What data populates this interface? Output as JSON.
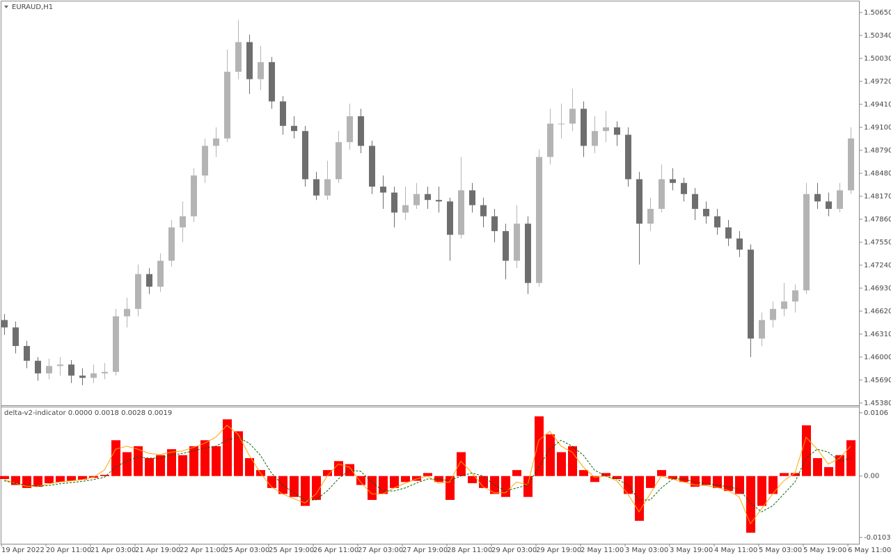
{
  "chart_data": [
    {
      "type": "candlestick",
      "title": "EURAUD,H1",
      "categories": [
        "19 Apr 2022",
        null,
        null,
        null,
        "20 Apr 11:00",
        null,
        null,
        null,
        "21 Apr 03:00",
        null,
        null,
        null,
        "21 Apr 19:00",
        null,
        null,
        null,
        "22 Apr 11:00",
        null,
        null,
        null,
        "25 Apr 03:00",
        null,
        null,
        null,
        "25 Apr 19:00",
        null,
        null,
        null,
        "26 Apr 11:00",
        null,
        null,
        null,
        "27 Apr 03:00",
        null,
        null,
        null,
        "27 Apr 19:00",
        null,
        null,
        null,
        "28 Apr 11:00",
        null,
        null,
        null,
        "29 Apr 03:00",
        null,
        null,
        null,
        "29 Apr 19:00",
        null,
        null,
        null,
        "2 May 11:00",
        null,
        null,
        null,
        "3 May 03:00",
        null,
        null,
        null,
        "3 May 19:00",
        null,
        null,
        null,
        "4 May 11:00",
        null,
        null,
        null,
        "5 May 03:00",
        null,
        null,
        null,
        "5 May 19:00",
        null,
        null,
        null,
        "6 May 11:00"
      ],
      "open": [
        1.465,
        1.464,
        1.4615,
        1.4595,
        1.4578,
        1.4588,
        1.459,
        1.4575,
        1.4572,
        1.4578,
        1.458,
        1.4655,
        1.4665,
        1.4712,
        1.4695,
        1.473,
        1.4775,
        1.479,
        1.4845,
        1.4885,
        1.4895,
        1.4985,
        1.5025,
        1.4975,
        1.4998,
        1.4945,
        1.4912,
        1.4905,
        1.484,
        1.4818,
        1.484,
        1.489,
        1.4925,
        1.4885,
        1.483,
        1.4822,
        1.4795,
        1.4805,
        1.482,
        1.4812,
        1.481,
        1.4765,
        1.4825,
        1.4805,
        1.479,
        1.477,
        1.473,
        1.478,
        1.47,
        1.487,
        1.4915,
        1.4915,
        1.4935,
        1.4885,
        1.4905,
        1.491,
        1.49,
        1.484,
        1.478,
        1.48,
        1.484,
        1.4835,
        1.482,
        1.48,
        1.479,
        1.4775,
        1.476,
        1.4745,
        1.4625,
        1.465,
        1.4665,
        1.4675,
        1.469,
        1.482,
        1.481,
        1.48,
        1.4825
      ],
      "high": [
        1.4658,
        1.4648,
        1.4622,
        1.46,
        1.4598,
        1.46,
        1.4596,
        1.4585,
        1.459,
        1.4592,
        1.4665,
        1.468,
        1.4725,
        1.472,
        1.474,
        1.4785,
        1.481,
        1.4855,
        1.4895,
        1.491,
        1.5015,
        1.5055,
        1.5035,
        1.502,
        1.5005,
        1.4952,
        1.4925,
        1.4912,
        1.485,
        1.4865,
        1.4905,
        1.4942,
        1.4935,
        1.4892,
        1.4845,
        1.483,
        1.483,
        1.4835,
        1.483,
        1.483,
        1.4815,
        1.487,
        1.4835,
        1.4815,
        1.48,
        1.478,
        1.4805,
        1.479,
        1.488,
        1.4935,
        1.4942,
        1.4962,
        1.4945,
        1.4925,
        1.4932,
        1.4918,
        1.491,
        1.485,
        1.4815,
        1.486,
        1.4855,
        1.4842,
        1.4828,
        1.481,
        1.48,
        1.4785,
        1.477,
        1.4752,
        1.466,
        1.4675,
        1.47,
        1.4698,
        1.4835,
        1.4835,
        1.4822,
        1.4835,
        1.491
      ],
      "low": [
        1.463,
        1.4605,
        1.4585,
        1.4568,
        1.457,
        1.4575,
        1.4565,
        1.4562,
        1.4565,
        1.457,
        1.4575,
        1.464,
        1.4655,
        1.4685,
        1.4688,
        1.4722,
        1.4755,
        1.4782,
        1.4835,
        1.487,
        1.489,
        1.4975,
        1.4955,
        1.496,
        1.4935,
        1.49,
        1.4895,
        1.483,
        1.4812,
        1.4812,
        1.4835,
        1.488,
        1.4875,
        1.482,
        1.48,
        1.4775,
        1.4785,
        1.48,
        1.48,
        1.4795,
        1.473,
        1.476,
        1.4795,
        1.4775,
        1.4755,
        1.4705,
        1.472,
        1.4685,
        1.4695,
        1.486,
        1.4895,
        1.4905,
        1.487,
        1.4875,
        1.489,
        1.4885,
        1.483,
        1.4725,
        1.477,
        1.4795,
        1.4825,
        1.481,
        1.4785,
        1.478,
        1.4765,
        1.475,
        1.4735,
        1.46,
        1.4615,
        1.464,
        1.4655,
        1.466,
        1.4685,
        1.48,
        1.479,
        1.4795,
        1.482
      ],
      "close": [
        1.464,
        1.4615,
        1.4595,
        1.4578,
        1.4588,
        1.459,
        1.4575,
        1.4572,
        1.4578,
        1.458,
        1.4655,
        1.4665,
        1.4712,
        1.4695,
        1.473,
        1.4775,
        1.479,
        1.4845,
        1.4885,
        1.4895,
        1.4985,
        1.5025,
        1.4975,
        1.4998,
        1.4945,
        1.4912,
        1.4905,
        1.484,
        1.4818,
        1.484,
        1.489,
        1.4925,
        1.4885,
        1.483,
        1.4822,
        1.4795,
        1.4805,
        1.482,
        1.4812,
        1.481,
        1.4765,
        1.4825,
        1.4805,
        1.479,
        1.477,
        1.473,
        1.478,
        1.47,
        1.487,
        1.4915,
        1.4915,
        1.4935,
        1.4885,
        1.4905,
        1.491,
        1.49,
        1.484,
        1.478,
        1.48,
        1.484,
        1.4835,
        1.482,
        1.48,
        1.479,
        1.4775,
        1.476,
        1.4745,
        1.4625,
        1.465,
        1.4665,
        1.4675,
        1.469,
        1.482,
        1.481,
        1.48,
        1.4825,
        1.4895
      ],
      "up_color": "#b4b4b4",
      "down_color": "#6e6e6e",
      "ylim": [
        1.4536,
        1.5079
      ],
      "yticks": [
        {
          "value": 1.5065,
          "label": "1.50650"
        },
        {
          "value": 1.5034,
          "label": "1.50340"
        },
        {
          "value": 1.5003,
          "label": "1.50030"
        },
        {
          "value": 1.4972,
          "label": "1.49720"
        },
        {
          "value": 1.4941,
          "label": "1.49410"
        },
        {
          "value": 1.491,
          "label": "1.49100"
        },
        {
          "value": 1.4879,
          "label": "1.48790"
        },
        {
          "value": 1.4848,
          "label": "1.48480"
        },
        {
          "value": 1.4817,
          "label": "1.48170"
        },
        {
          "value": 1.4786,
          "label": "1.47860"
        },
        {
          "value": 1.4755,
          "label": "1.47550"
        },
        {
          "value": 1.4724,
          "label": "1.47240"
        },
        {
          "value": 1.4693,
          "label": "1.46930"
        },
        {
          "value": 1.4662,
          "label": "1.46620"
        },
        {
          "value": 1.4631,
          "label": "1.46310"
        },
        {
          "value": 1.46,
          "label": "1.46000"
        },
        {
          "value": 1.4569,
          "label": "1.45690"
        },
        {
          "value": 1.4538,
          "label": "1.45380"
        }
      ],
      "grid": false
    },
    {
      "type": "bar",
      "title": "delta-v2-indicator 0.0000 0.0018 0.0028 0.0019",
      "series": [
        {
          "kind": "bar",
          "color": "#ff0000",
          "values": [
            -0.0005,
            -0.0015,
            -0.002,
            -0.0018,
            -0.0012,
            -0.001,
            -0.0008,
            -0.0006,
            -0.0003,
            0.0002,
            0.006,
            0.004,
            0.005,
            0.003,
            0.0035,
            0.0045,
            0.0035,
            0.005,
            0.006,
            0.005,
            0.0095,
            0.0075,
            0.003,
            0.001,
            -0.002,
            -0.003,
            -0.0035,
            -0.005,
            -0.004,
            0.001,
            0.0025,
            0.002,
            -0.0015,
            -0.004,
            -0.003,
            -0.002,
            -0.001,
            -0.0008,
            0.0005,
            -0.001,
            -0.004,
            0.004,
            -0.0012,
            -0.002,
            -0.003,
            -0.0035,
            0.001,
            -0.0035,
            0.01,
            0.007,
            0.004,
            0.005,
            0.001,
            -0.001,
            0.0005,
            -0.0005,
            -0.003,
            -0.0075,
            -0.002,
            0.001,
            -0.0005,
            -0.001,
            -0.0018,
            -0.0015,
            -0.002,
            -0.0025,
            -0.003,
            -0.0095,
            -0.005,
            -0.003,
            0.0005,
            0.0005,
            0.0085,
            0.003,
            0.0015,
            0.0035,
            0.006
          ]
        },
        {
          "kind": "line",
          "color": "#ffa500",
          "dashed": false,
          "values": [
            -0.0006,
            -0.0012,
            -0.0017,
            -0.0017,
            -0.0013,
            -0.001,
            -0.0008,
            -0.0006,
            -0.0002,
            0.001,
            0.0045,
            0.005,
            0.0045,
            0.0038,
            0.0036,
            0.004,
            0.0042,
            0.0048,
            0.0055,
            0.0065,
            0.0085,
            0.007,
            0.0035,
            0.0005,
            -0.0018,
            -0.003,
            -0.0038,
            -0.0045,
            -0.003,
            0,
            0.002,
            0.0015,
            -0.001,
            -0.003,
            -0.003,
            -0.002,
            -0.0012,
            -0.0005,
            0,
            -0.0012,
            -0.001,
            0.0025,
            0.0005,
            -0.0018,
            -0.0028,
            -0.0028,
            -0.001,
            -0.0015,
            0.006,
            0.0075,
            0.005,
            0.004,
            0.0015,
            -0.0002,
            0,
            -0.0008,
            -0.003,
            -0.006,
            -0.003,
            0,
            -0.0005,
            -0.001,
            -0.0015,
            -0.0016,
            -0.0019,
            -0.0024,
            -0.0035,
            -0.008,
            -0.0055,
            -0.003,
            -0.0008,
            0.0005,
            0.0065,
            0.0045,
            0.002,
            0.003,
            0.005
          ]
        },
        {
          "kind": "line",
          "color": "#006400",
          "dashed": true,
          "values": [
            -0.0008,
            -0.0012,
            -0.0015,
            -0.0017,
            -0.0016,
            -0.0013,
            -0.0011,
            -0.0009,
            -0.0006,
            -0.0002,
            0.0015,
            0.0025,
            0.0032,
            0.003,
            0.003,
            0.0035,
            0.0038,
            0.0042,
            0.0047,
            0.005,
            0.006,
            0.0065,
            0.0055,
            0.0035,
            0.0005,
            -0.0015,
            -0.0028,
            -0.004,
            -0.004,
            -0.0025,
            -0.0005,
            0.001,
            0.0008,
            -0.001,
            -0.0025,
            -0.0025,
            -0.002,
            -0.0012,
            -0.0005,
            -0.0005,
            -0.0008,
            0,
            0.0005,
            0,
            -0.0015,
            -0.0025,
            -0.002,
            -0.0015,
            0.0015,
            0.0045,
            0.006,
            0.005,
            0.0035,
            0.001,
            0,
            -0.0005,
            -0.0015,
            -0.004,
            -0.004,
            -0.002,
            -0.0005,
            -0.0005,
            -0.001,
            -0.0013,
            -0.0015,
            -0.0018,
            -0.0022,
            -0.0045,
            -0.006,
            -0.005,
            -0.003,
            -0.001,
            0.003,
            0.0045,
            0.004,
            0.0025,
            0.003
          ]
        }
      ],
      "ylim": [
        -0.011,
        0.0114
      ],
      "yticks": [
        0.0106,
        {
          "value": 0,
          "label": "0.00"
        },
        -0.0103
      ],
      "grid": false
    }
  ]
}
